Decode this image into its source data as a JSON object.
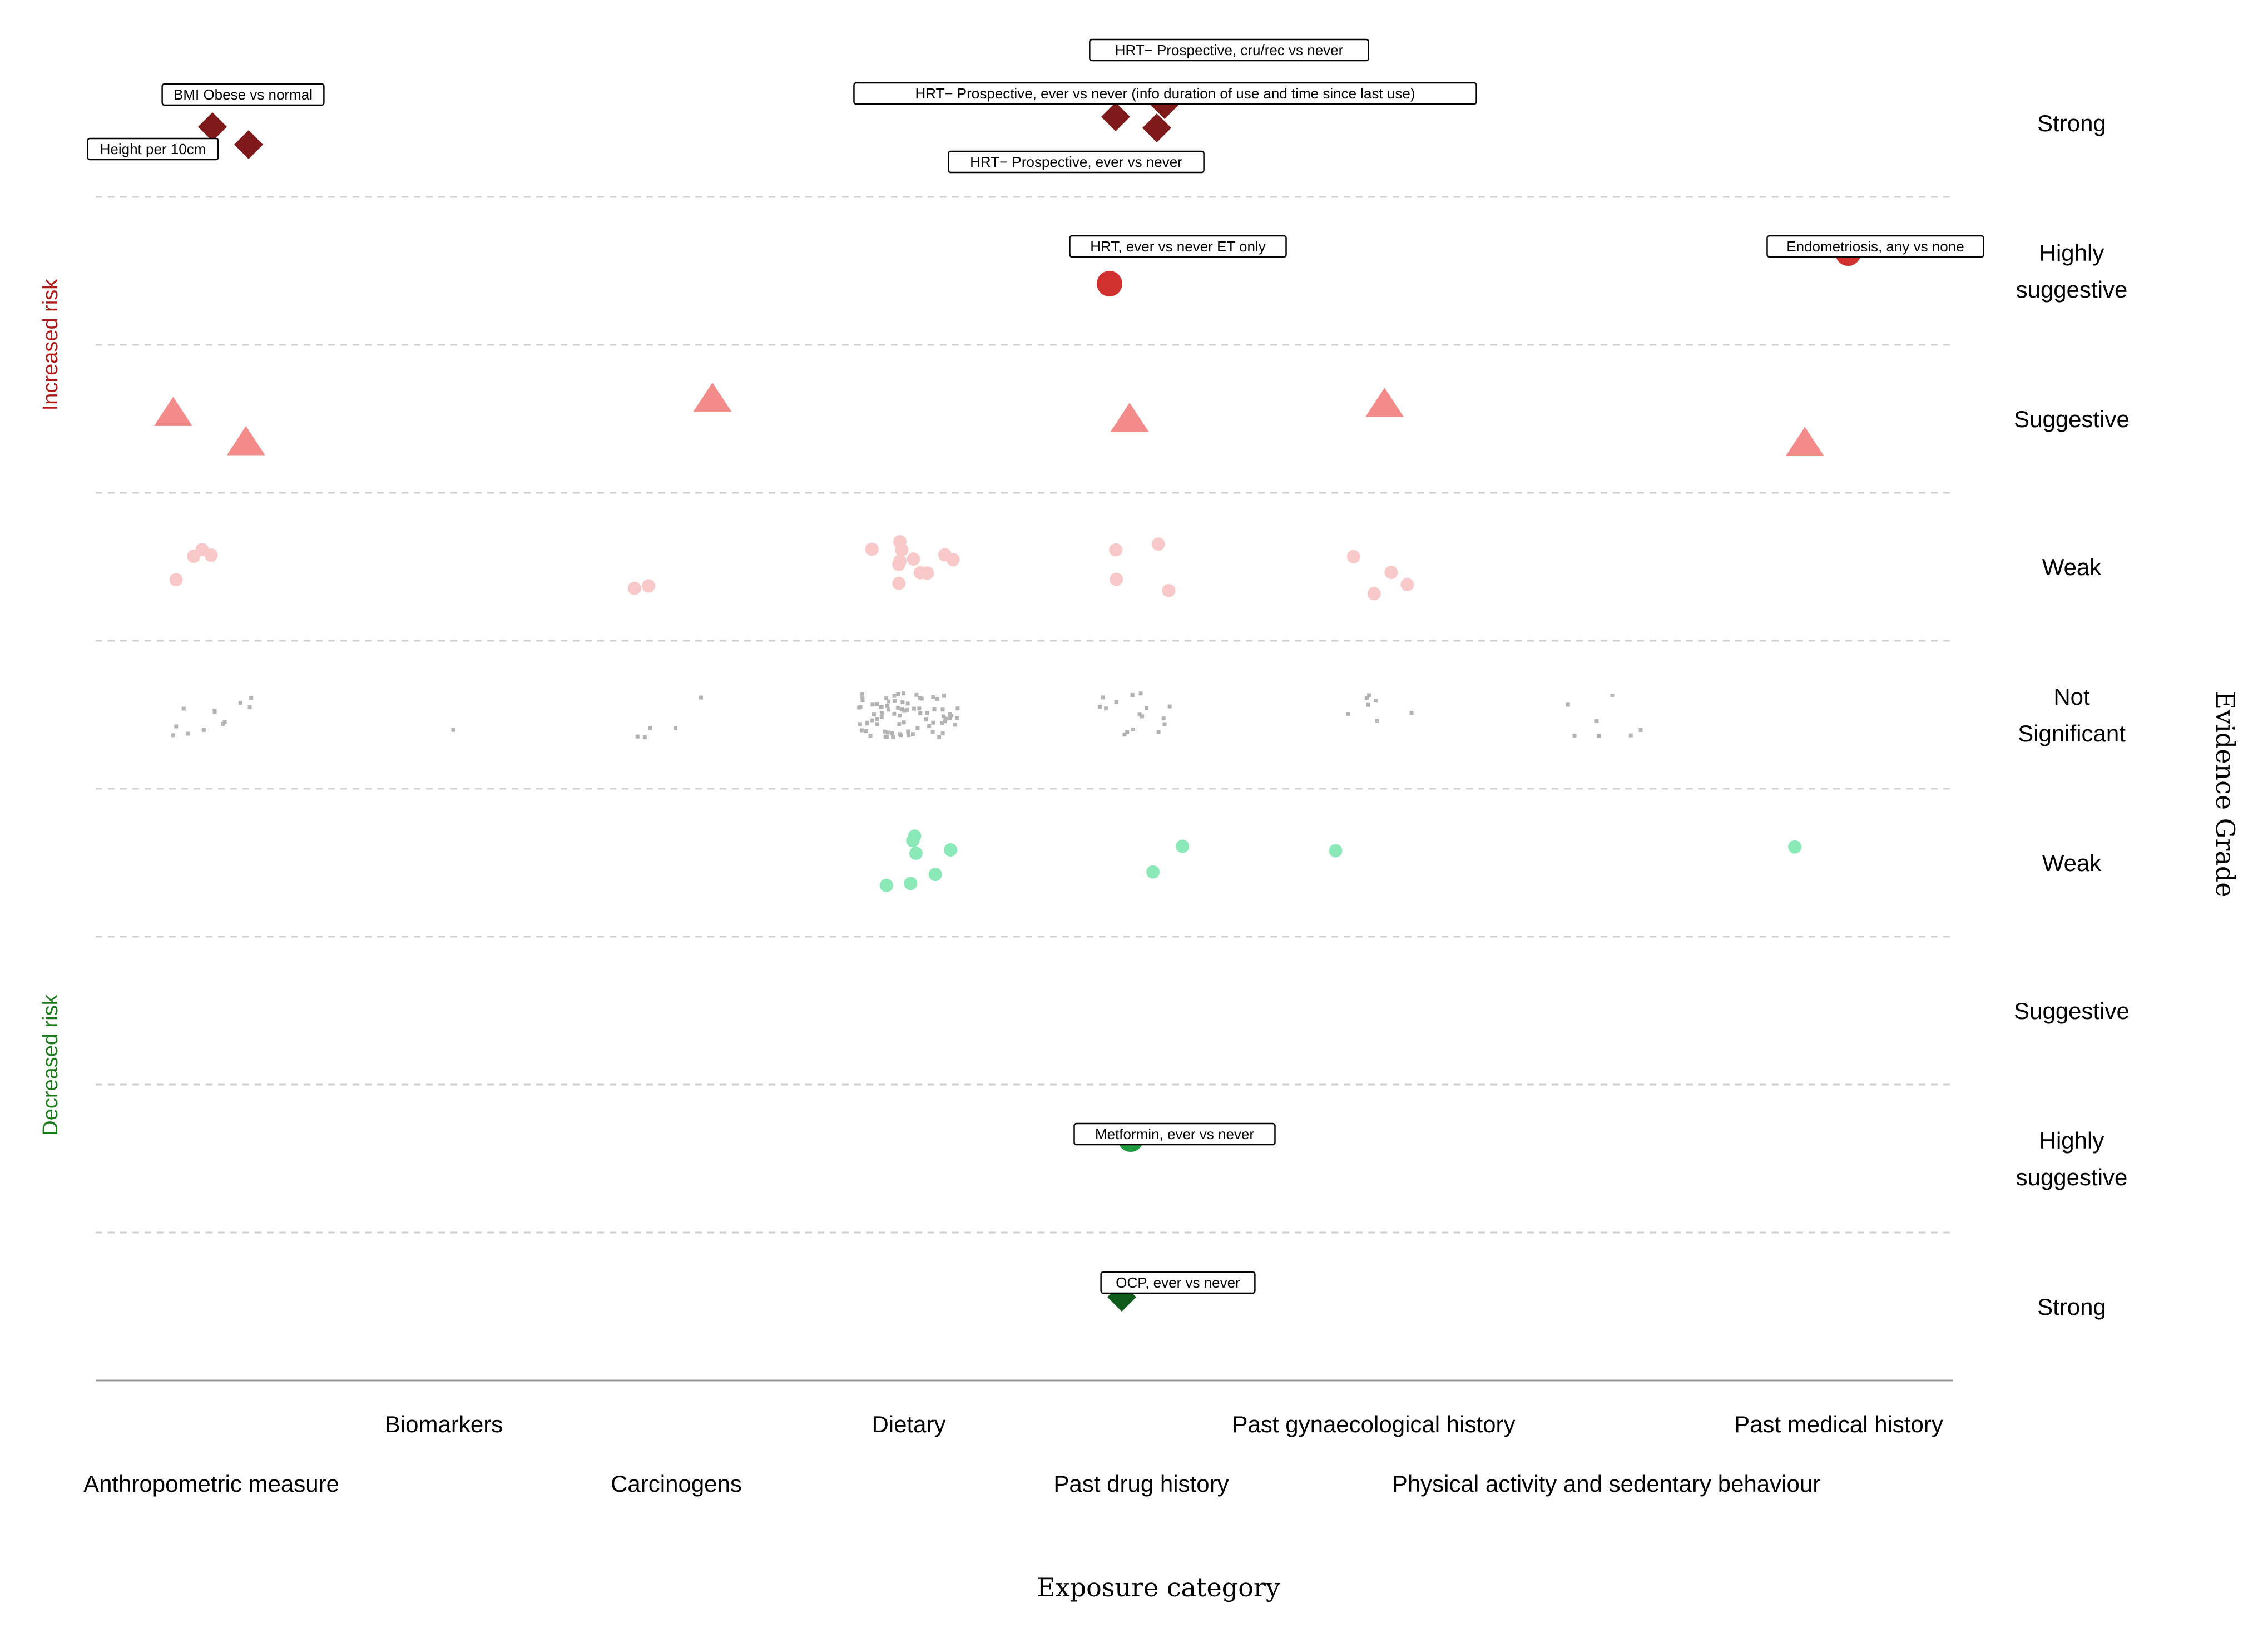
{
  "chart_data": {
    "type": "scatter",
    "xlabel": "Exposure category",
    "ylabel": "Evidence Grade",
    "categories": [
      "Anthropometric measure",
      "Biomarkers",
      "Carcinogens",
      "Dietary",
      "Past drug history",
      "Past gynaecological history",
      "Physical activity and sedentary behaviour",
      "Past medical history"
    ],
    "grades": [
      "Strong",
      "Highly suggestive",
      "Suggestive",
      "Weak",
      "Not Significant",
      "Weak",
      "Suggestive",
      "Highly suggestive",
      "Strong"
    ],
    "grade_lines": [
      [
        "Strong"
      ],
      [
        "Highly",
        "suggestive"
      ],
      [
        "Suggestive"
      ],
      [
        "Weak"
      ],
      [
        "Not",
        "Significant"
      ],
      [
        "Weak"
      ],
      [
        "Suggestive"
      ],
      [
        "Highly",
        "suggestive"
      ],
      [
        "Strong"
      ]
    ],
    "direction_labels": {
      "increased": "Increased risk",
      "decreased": "Decreased risk"
    },
    "grid": "horizontal dashed",
    "legend": "none",
    "colors": {
      "inc_strong": "#801a1a",
      "inc_highly": "#d0302e",
      "inc_suggestive": "#f28b89",
      "inc_weak": "#f9c9c9",
      "not_significant": "#b3b3b3",
      "dec_weak": "#8ae9b7",
      "dec_highly": "#1e9a3c",
      "dec_strong": "#0e5a1a",
      "increased_label": "#b01818",
      "decreased_label": "#1a7a1a"
    },
    "annotated_points": [
      {
        "label": "BMI Obese vs normal",
        "category": "Anthropometric measure",
        "grade": "Strong",
        "direction": "increased",
        "marker": "diamond"
      },
      {
        "label": "Height per 10cm",
        "category": "Anthropometric measure",
        "grade": "Strong",
        "direction": "increased",
        "marker": "diamond"
      },
      {
        "label": "HRT− Prospective, cru/rec vs never",
        "category": "Past drug history",
        "grade": "Strong",
        "direction": "increased",
        "marker": "diamond"
      },
      {
        "label": "HRT− Prospective, ever vs never (info duration of use and time since last use)",
        "category": "Past drug history",
        "grade": "Strong",
        "direction": "increased",
        "marker": "diamond"
      },
      {
        "label": "HRT− Prospective, ever vs never",
        "category": "Past drug history",
        "grade": "Strong",
        "direction": "increased",
        "marker": "diamond"
      },
      {
        "label": "HRT, ever vs never ET only",
        "category": "Past drug history",
        "grade": "Highly suggestive",
        "direction": "increased",
        "marker": "circle"
      },
      {
        "label": "Endometriosis, any vs none",
        "category": "Past medical history",
        "grade": "Highly suggestive",
        "direction": "increased",
        "marker": "circle"
      },
      {
        "label": "Metformin, ever vs never",
        "category": "Past drug history",
        "grade": "Highly suggestive",
        "direction": "decreased",
        "marker": "circle"
      },
      {
        "label": "OCP, ever vs never",
        "category": "Past drug history",
        "grade": "Strong",
        "direction": "decreased",
        "marker": "diamond"
      }
    ],
    "point_counts": {
      "increased_suggestive": {
        "Anthropometric measure": 2,
        "Carcinogens": 1,
        "Past drug history": 1,
        "Past gynaecological history": 1,
        "Past medical history": 1
      },
      "increased_weak": {
        "Anthropometric measure": 4,
        "Carcinogens": 2,
        "Dietary": 11,
        "Past drug history": 4,
        "Past gynaecological history": 4
      },
      "decreased_weak": {
        "Dietary": 7,
        "Past drug history": 2,
        "Past gynaecological history": 1,
        "Past medical history": 1
      }
    }
  }
}
